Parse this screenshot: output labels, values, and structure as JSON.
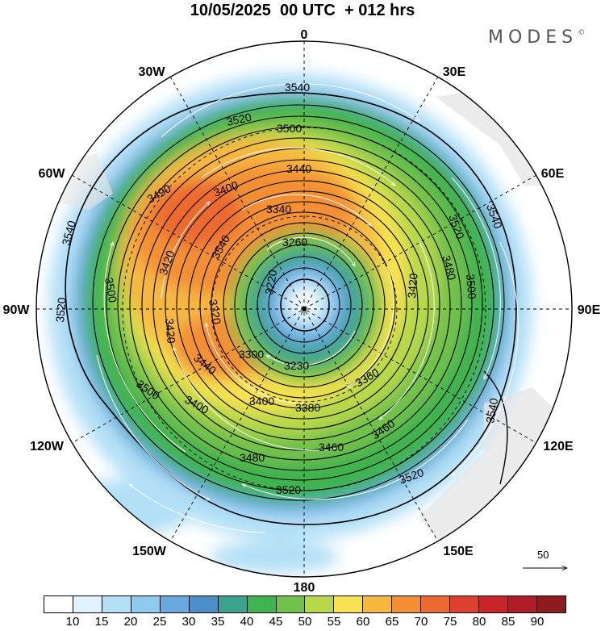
{
  "title": "10/05/2025  00 UTC  + 012 hrs",
  "brand": "MODES",
  "brand_mark": "©",
  "longitude_labels": [
    "0",
    "30E",
    "60E",
    "90E",
    "120E",
    "150E",
    "180",
    "150W",
    "120W",
    "90W",
    "60W",
    "30W"
  ],
  "reference_vector": "50",
  "colorbar": {
    "colors": [
      "#ffffff",
      "#e1f3fd",
      "#b3e0f7",
      "#8ecaee",
      "#68a9df",
      "#4a8fcc",
      "#3aa38e",
      "#3fb34f",
      "#71c14c",
      "#b7d84a",
      "#f7e24f",
      "#f6b83f",
      "#f39035",
      "#ec6a2f",
      "#df3f2d",
      "#c9232b",
      "#b11d27",
      "#8e1b1e"
    ],
    "labels": [
      "10",
      "15",
      "20",
      "25",
      "30",
      "35",
      "40",
      "45",
      "50",
      "55",
      "60",
      "65",
      "70",
      "75",
      "80",
      "85",
      "90"
    ]
  },
  "contour_labels": [
    "3540",
    "3520",
    "3500",
    "3520",
    "3440",
    "3490",
    "3400",
    "3340",
    "3540",
    "3260",
    "3420",
    "3220",
    "3320",
    "3500",
    "3420",
    "3520",
    "3440",
    "3500",
    "3400",
    "3300",
    "3230",
    "3360",
    "3400",
    "3380",
    "3460",
    "3480",
    "3460",
    "3520",
    "3520",
    "3540",
    "3540",
    "3480",
    "3420",
    "3500",
    "3540"
  ],
  "map": {
    "units": "knots",
    "field": "wind speed with geopotential height contours",
    "projection": "south polar stereographic"
  }
}
